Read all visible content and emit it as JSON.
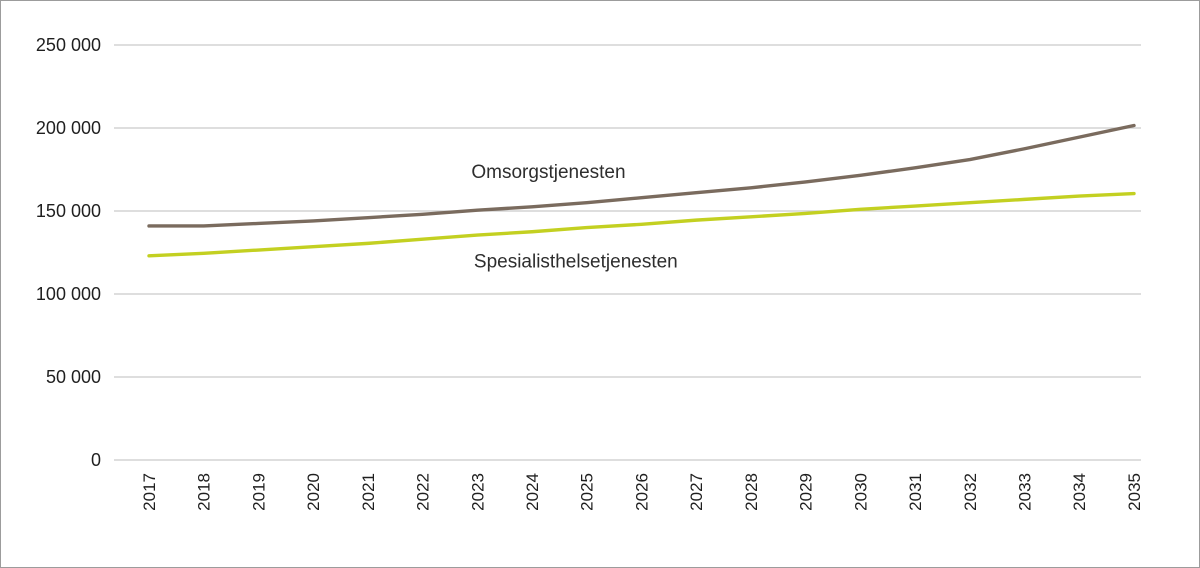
{
  "chart_data": {
    "type": "line",
    "x": [
      2017,
      2018,
      2019,
      2020,
      2021,
      2022,
      2023,
      2024,
      2025,
      2026,
      2027,
      2028,
      2029,
      2030,
      2031,
      2032,
      2033,
      2034,
      2035
    ],
    "x_tick_labels": [
      "2017",
      "2018",
      "2019",
      "2020",
      "2021",
      "2022",
      "2023",
      "2024",
      "2025",
      "2026",
      "2027",
      "2028",
      "2029",
      "2030",
      "2031",
      "2032",
      "2033",
      "2034",
      "2035"
    ],
    "ylim": [
      0,
      250000
    ],
    "yticks": [
      0,
      50000,
      100000,
      150000,
      200000,
      250000
    ],
    "ytick_labels": [
      "0",
      "50 000",
      "100 000",
      "150 000",
      "200 000",
      "250 000"
    ],
    "grid": true,
    "legend_position": "inline-labels",
    "title": "",
    "xlabel": "",
    "ylabel": "",
    "series": [
      {
        "name": "Omsorgstjenesten",
        "color": "#7a6b5e",
        "values": [
          141000,
          141000,
          142500,
          144000,
          146000,
          148000,
          150500,
          152500,
          155000,
          158000,
          161000,
          164000,
          167500,
          171500,
          176000,
          181000,
          187500,
          194500,
          201500
        ]
      },
      {
        "name": "Spesialisthelsetjenesten",
        "color": "#c3d021",
        "values": [
          123000,
          124500,
          126500,
          128500,
          130500,
          133000,
          135500,
          137500,
          140000,
          142000,
          144500,
          146500,
          148500,
          151000,
          153000,
          155000,
          157000,
          159000,
          160500
        ]
      }
    ],
    "annotations": [
      {
        "text": "Omsorgstjenesten",
        "x": 2024.3,
        "y": 170000
      },
      {
        "text": "Spesialisthelsetjenesten",
        "x": 2024.8,
        "y": 116000
      }
    ],
    "colors": {
      "grid": "#c9c9c9",
      "axis": "#c9c9c9",
      "text": "#1f1f1f",
      "annotation_text": "#2e2e2e",
      "border": "#9c9c9c",
      "background": "#ffffff"
    }
  }
}
